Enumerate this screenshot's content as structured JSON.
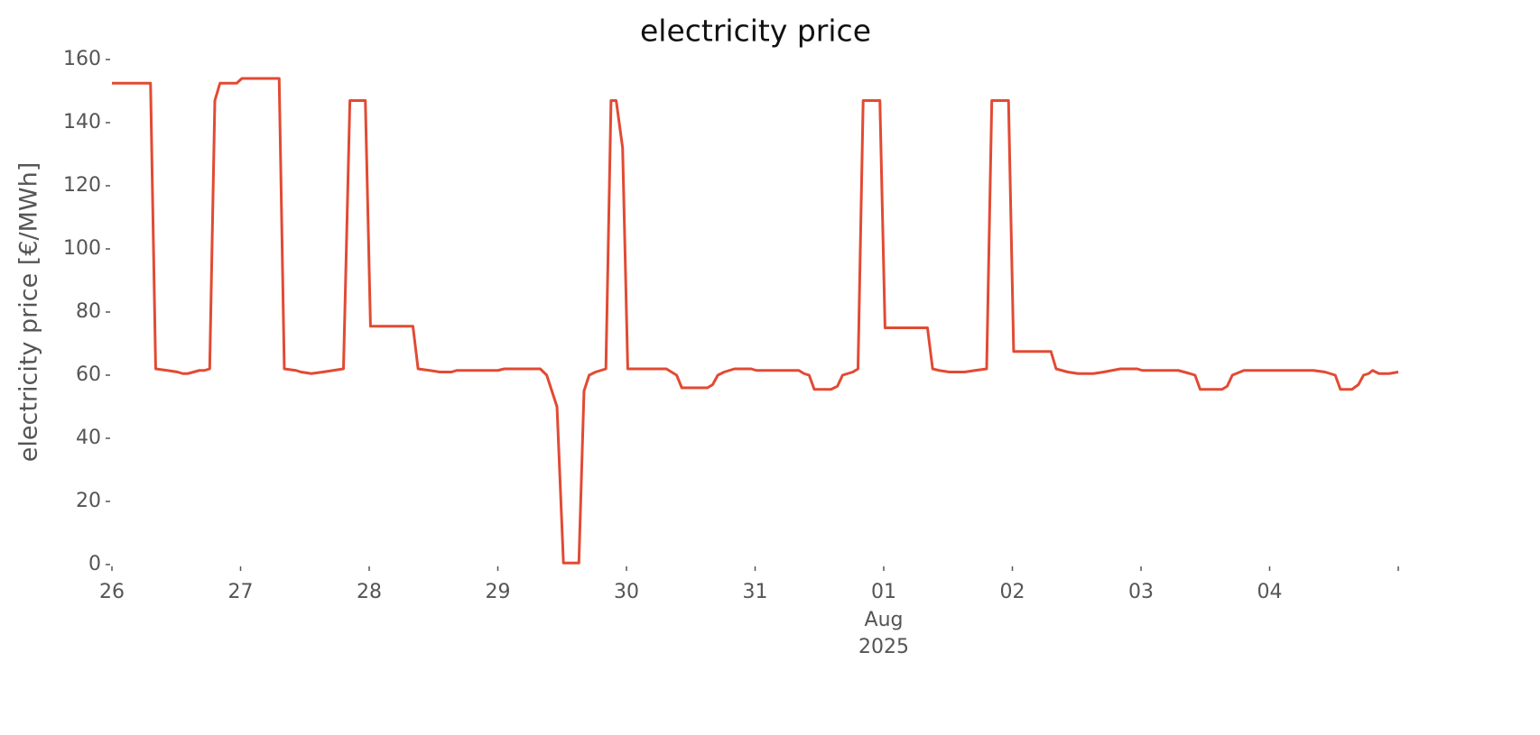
{
  "chart_data": {
    "type": "line",
    "title": "electricity price",
    "ylabel": "electricity price [€/MWh]",
    "x_sublabel": [
      "Aug",
      "2025"
    ],
    "x": [
      0,
      0.3,
      0.34,
      0.43,
      0.51,
      0.55,
      0.59,
      0.68,
      0.72,
      0.76,
      0.8,
      0.84,
      0.97,
      1.01,
      1.3,
      1.34,
      1.43,
      1.47,
      1.55,
      1.64,
      1.72,
      1.8,
      1.85,
      1.97,
      2.01,
      2.34,
      2.38,
      2.47,
      2.55,
      2.64,
      2.68,
      3.0,
      3.05,
      3.33,
      3.38,
      3.42,
      3.46,
      3.51,
      3.63,
      3.67,
      3.71,
      3.76,
      3.84,
      3.88,
      3.92,
      3.97,
      4.01,
      4.31,
      4.35,
      4.39,
      4.43,
      4.63,
      4.67,
      4.71,
      4.76,
      4.84,
      4.97,
      5.01,
      5.34,
      5.38,
      5.42,
      5.46,
      5.59,
      5.64,
      5.68,
      5.76,
      5.8,
      5.84,
      5.97,
      6.01,
      6.34,
      6.38,
      6.43,
      6.51,
      6.63,
      6.71,
      6.8,
      6.84,
      6.97,
      7.01,
      7.3,
      7.34,
      7.43,
      7.51,
      7.63,
      7.71,
      7.84,
      7.97,
      8.01,
      8.29,
      8.38,
      8.42,
      8.46,
      8.63,
      8.67,
      8.71,
      8.8,
      9.34,
      9.43,
      9.51,
      9.55,
      9.64,
      9.69,
      9.73,
      9.77,
      9.8,
      9.85,
      9.93,
      10.0
    ],
    "series": [
      {
        "name": "electricity price",
        "color": "#e24a33",
        "values": [
          152.5,
          152.5,
          62,
          61.5,
          61,
          60.5,
          60.5,
          61.5,
          61.5,
          62,
          147,
          152.5,
          152.5,
          154,
          154,
          62,
          61.5,
          61,
          60.5,
          61,
          61.5,
          62,
          147,
          147,
          75.5,
          75.5,
          62,
          61.5,
          61,
          61,
          61.5,
          61.5,
          62,
          62,
          60,
          55,
          50,
          0.5,
          0.5,
          55,
          60,
          61,
          62,
          147,
          147,
          132,
          62,
          62,
          61,
          60,
          56,
          56,
          57,
          60,
          61,
          62,
          62,
          61.5,
          61.5,
          60.5,
          60,
          55.5,
          55.5,
          56.5,
          60,
          61,
          62,
          147,
          147,
          75,
          75,
          62,
          61.5,
          61,
          61,
          61.5,
          62,
          147,
          147,
          67.5,
          67.5,
          62,
          61,
          60.5,
          60.5,
          61,
          62,
          62,
          61.5,
          61.5,
          60.5,
          60,
          55.5,
          55.5,
          56.5,
          60,
          61.5,
          61.5,
          61,
          60,
          55.5,
          55.5,
          57,
          60,
          60.5,
          61.5,
          60.5,
          60.5,
          61
        ]
      }
    ],
    "xlim": [
      0,
      10
    ],
    "xticks": [
      {
        "value": 0,
        "label": "26"
      },
      {
        "value": 1,
        "label": "27"
      },
      {
        "value": 2,
        "label": "28"
      },
      {
        "value": 3,
        "label": "29"
      },
      {
        "value": 4,
        "label": "30"
      },
      {
        "value": 5,
        "label": "31"
      },
      {
        "value": 6,
        "label": "01"
      },
      {
        "value": 7,
        "label": "02"
      },
      {
        "value": 8,
        "label": "03"
      },
      {
        "value": 9,
        "label": "04"
      },
      {
        "value": 10,
        "label": ""
      }
    ],
    "ylim": [
      0,
      160
    ],
    "yticks": [
      0,
      20,
      40,
      60,
      80,
      100,
      120,
      140,
      160
    ],
    "grid": false
  }
}
